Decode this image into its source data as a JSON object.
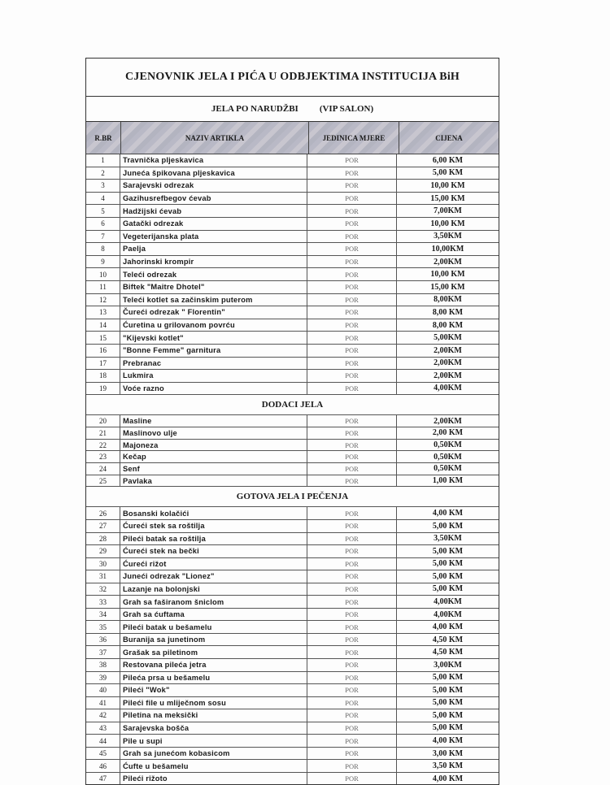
{
  "title": "CJENOVNIK JELA I PIĆA U ODBJEKTIMA INSTITUCIJA BiH",
  "subtitle": {
    "left": "JELA PO NARUDŽBI",
    "right": "(VIP SALON)"
  },
  "columns": [
    "R.BR",
    "NAZIV ARTIKLA",
    "JEDINICA MJERE",
    "CIJENA"
  ],
  "sections": [
    {
      "title": "",
      "rows": [
        [
          "1",
          "Travnička pljeskavica",
          "POR",
          "6,00 KM"
        ],
        [
          "2",
          "Juneća špikovana pljeskavica",
          "POR",
          "5,00 KM"
        ],
        [
          "3",
          "Sarajevski odrezak",
          "POR",
          "10,00 KM"
        ],
        [
          "4",
          "Gazihusrefbegov ćevab",
          "POR",
          "15,00 KM"
        ],
        [
          "5",
          "Hadžijski ćevab",
          "POR",
          "7,00KM"
        ],
        [
          "6",
          "Gatački odrezak",
          "POR",
          "10,00 KM"
        ],
        [
          "7",
          "Vegeterijanska plata",
          "POR",
          "3,50KM"
        ],
        [
          "8",
          "Paelja",
          "POR",
          "10,00KM"
        ],
        [
          "9",
          "Jahorinski krompir",
          "POR",
          "2,00KM"
        ],
        [
          "10",
          "Teleći odrezak",
          "POR",
          "10,00 KM"
        ],
        [
          "11",
          "Biftek \"Maitre Dhotel\"",
          "POR",
          "15,00 KM"
        ],
        [
          "12",
          "Teleći kotlet sa začinskim puterom",
          "POR",
          "8,00KM"
        ],
        [
          "13",
          "Čureći odrezak \" Florentin\"",
          "POR",
          "8,00 KM"
        ],
        [
          "14",
          "Ćuretina u grilovanom povrću",
          "POR",
          "8,00 KM"
        ],
        [
          "15",
          "\"Kijevski kotlet\"",
          "POR",
          "5,00KM"
        ],
        [
          "16",
          "\"Bonne Femme\" garnitura",
          "POR",
          "2,00KM"
        ],
        [
          "17",
          "Prebranac",
          "POR",
          "2,00KM"
        ],
        [
          "18",
          "Lukmira",
          "POR",
          "2,00KM"
        ],
        [
          "19",
          "Voće razno",
          "POR",
          "4,00KM"
        ]
      ]
    },
    {
      "title": "DODACI JELA",
      "rows": [
        [
          "20",
          "Masline",
          "POR",
          "2,00KM"
        ],
        [
          "21",
          "Maslinovo ulje",
          "POR",
          "2,00 KM"
        ],
        [
          "22",
          "Majoneza",
          "POR",
          "0,50KM"
        ],
        [
          "23",
          "Kečap",
          "POR",
          "0,50KM"
        ],
        [
          "24",
          "Senf",
          "POR",
          "0,50KM"
        ],
        [
          "25",
          "Pavlaka",
          "POR",
          "1,00 KM"
        ]
      ]
    },
    {
      "title": "GOTOVA JELA I PEČENJA",
      "rows": [
        [
          "26",
          "Bosanski kolačići",
          "POR",
          "4,00 KM"
        ],
        [
          "27",
          "Ćureći stek sa roštilja",
          "POR",
          "5,00 KM"
        ],
        [
          "28",
          "Pileći batak sa roštilja",
          "POR",
          "3,50KM"
        ],
        [
          "29",
          "Ćureći stek na bečki",
          "POR",
          "5,00 KM"
        ],
        [
          "30",
          "Ćureći rižot",
          "POR",
          "5,00 KM"
        ],
        [
          "31",
          "Juneći odrezak \"Lionez\"",
          "POR",
          "5,00 KM"
        ],
        [
          "32",
          "Lazanje na bolonjski",
          "POR",
          "5,00 KM"
        ],
        [
          "33",
          "Grah sa faširanom šniclom",
          "POR",
          "4,00KM"
        ],
        [
          "34",
          "Grah sa ćuftama",
          "POR",
          "4,00KM"
        ],
        [
          "35",
          "Pileći batak u bešamelu",
          "POR",
          "4,00 KM"
        ],
        [
          "36",
          "Buranija sa junetinom",
          "POR",
          "4,50 KM"
        ],
        [
          "37",
          "Grašak sa piletinom",
          "POR",
          "4,50 KM"
        ],
        [
          "38",
          "Restovana pileća jetra",
          "POR",
          "3,00KM"
        ],
        [
          "39",
          "Pileća prsa u bešamelu",
          "POR",
          "5,00 KM"
        ],
        [
          "40",
          "Pileći \"Wok\"",
          "POR",
          "5,00 KM"
        ],
        [
          "41",
          "Pileći file u mliječnom sosu",
          "POR",
          "5,00 KM"
        ],
        [
          "42",
          "Piletina na meksički",
          "POR",
          "5,00 KM"
        ],
        [
          "43",
          "Sarajevska bošča",
          "POR",
          "5,00 KM"
        ],
        [
          "44",
          "Pile u supi",
          "POR",
          "4,00 KM"
        ],
        [
          "45",
          "Grah sa junećom kobasicom",
          "POR",
          "3,00 KM"
        ],
        [
          "46",
          "Ćufte u bešamelu",
          "POR",
          "3,50 KM"
        ],
        [
          "47",
          "Pileći rižoto",
          "POR",
          "4,00 KM"
        ]
      ]
    }
  ]
}
